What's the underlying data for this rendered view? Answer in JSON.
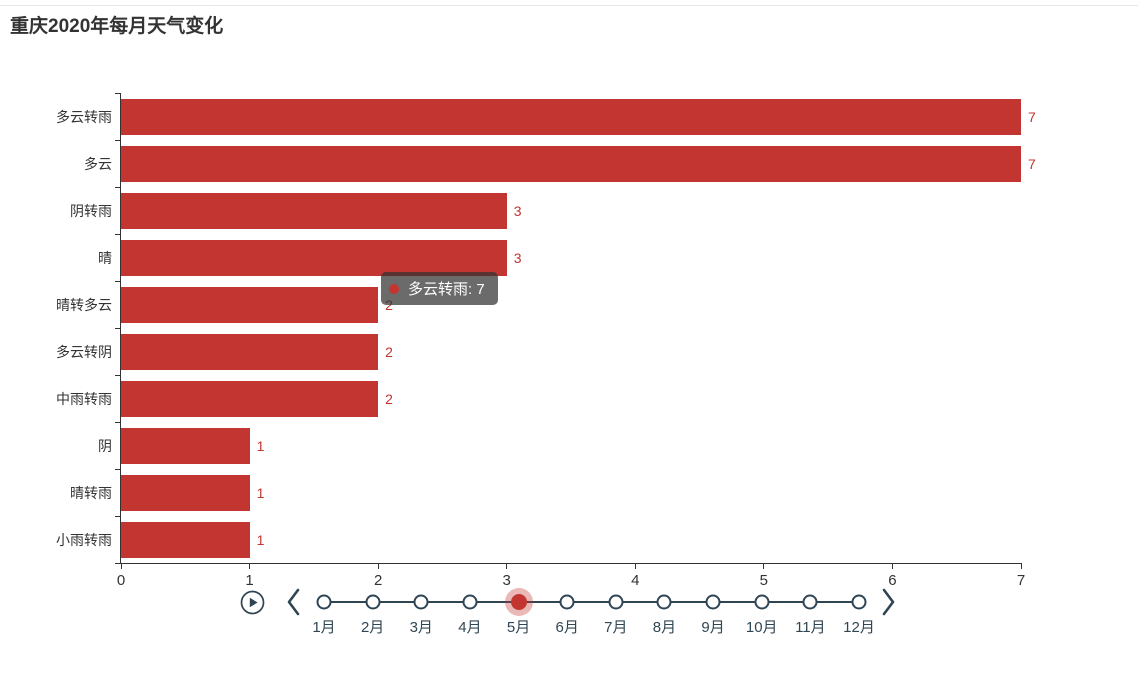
{
  "title": "重庆2020年每月天气变化",
  "colors": {
    "bar": "#c23531",
    "value_label": "#c23531",
    "axis": "#333333",
    "timeline": "#2f4554",
    "timeline_selected": "#c23531",
    "timeline_halo": "rgba(194,53,49,0.35)",
    "tooltip_bg": "rgba(50,50,50,0.72)"
  },
  "chart_data": {
    "type": "bar",
    "orientation": "horizontal",
    "title": "重庆2020年每月天气变化",
    "categories": [
      "多云转雨",
      "多云",
      "阴转雨",
      "晴",
      "晴转多云",
      "多云转阴",
      "中雨转雨",
      "阴",
      "晴转雨",
      "小雨转雨"
    ],
    "values": [
      7,
      7,
      3,
      3,
      2,
      2,
      2,
      1,
      1,
      1
    ],
    "xlabel": "",
    "ylabel": "",
    "xlim": [
      0,
      7
    ],
    "x_ticks": [
      0,
      1,
      2,
      3,
      4,
      5,
      6,
      7
    ],
    "grid": false,
    "value_labels_shown": true
  },
  "tooltip": {
    "text": "多云转雨: 7",
    "marker": "series-dot-icon"
  },
  "timeline": {
    "months": [
      "1月",
      "2月",
      "3月",
      "4月",
      "5月",
      "6月",
      "7月",
      "8月",
      "9月",
      "10月",
      "11月",
      "12月"
    ],
    "selected_index": 4,
    "selected_label": "5月",
    "controls": [
      "play-button",
      "prev-button",
      "next-button"
    ]
  }
}
